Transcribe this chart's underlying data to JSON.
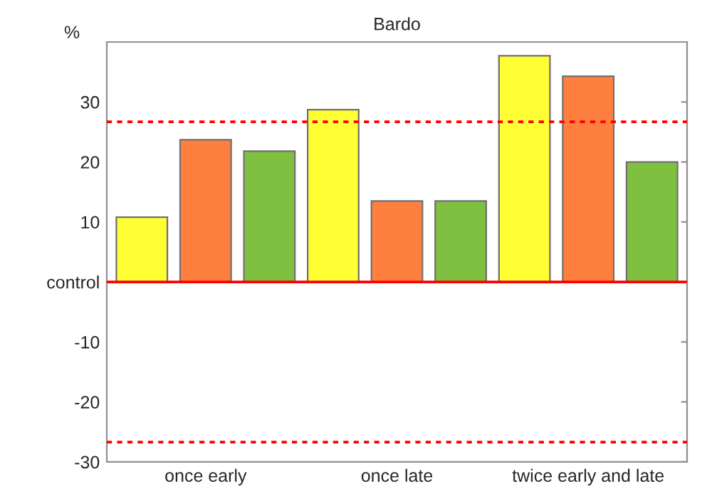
{
  "chart_data": {
    "type": "bar",
    "title": "Bardo",
    "ylabel": "%",
    "categories": [
      null,
      "once early",
      null,
      null,
      "once late",
      null,
      null,
      "twice early and late",
      null
    ],
    "values": [
      10.8,
      23.7,
      21.8,
      28.7,
      13.5,
      13.5,
      37.7,
      34.3,
      20.0
    ],
    "colors": [
      "#ffff33",
      "#ff7f3f",
      "#80c040",
      "#ffff33",
      "#ff7f3f",
      "#80c040",
      "#ffff33",
      "#ff7f3f",
      "#80c040"
    ],
    "ylim": [
      -30,
      40
    ],
    "yticks": [
      -30,
      -20,
      -10,
      {
        "value": 0,
        "label": "control"
      },
      10,
      20,
      30
    ],
    "ref_lines": [
      {
        "axis": "y",
        "value": 0,
        "color": "#ff0000",
        "line_style": "solid"
      },
      {
        "axis": "y",
        "value": 26.7,
        "color": "#ff0000",
        "line_style": "dashed"
      },
      {
        "axis": "y",
        "value": -26.7,
        "color": "#ff0000",
        "line_style": "dashed"
      }
    ],
    "grid": false,
    "legend": false
  }
}
